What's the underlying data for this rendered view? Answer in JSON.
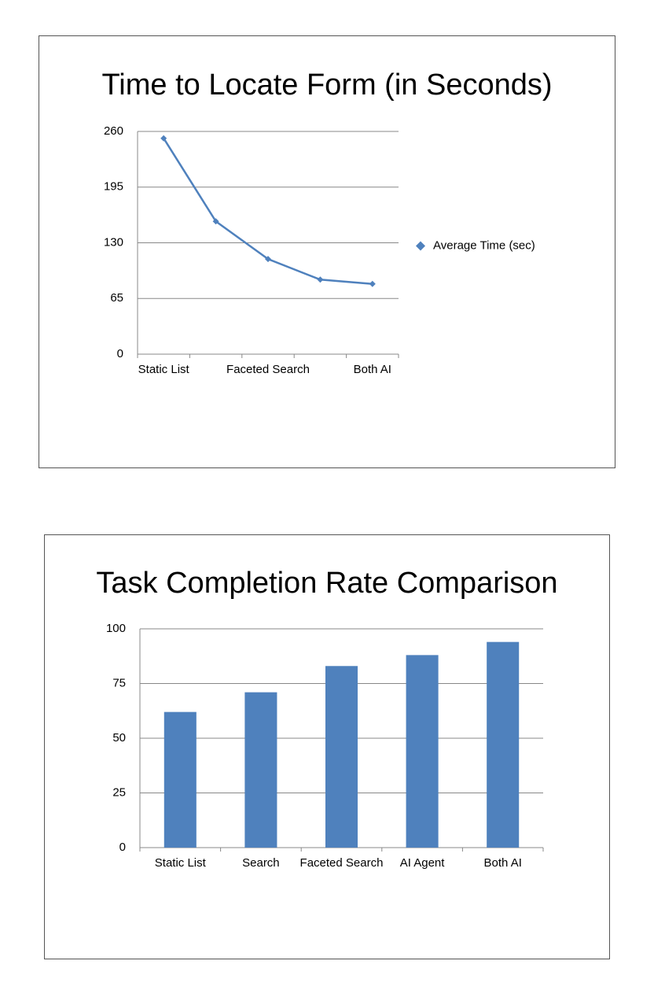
{
  "chart_data": [
    {
      "type": "line",
      "title": "Time to Locate Form (in Seconds)",
      "categories": [
        "Static List",
        null,
        "Faceted Search",
        null,
        "Both AI"
      ],
      "series": [
        {
          "name": "Average Time (sec)",
          "color": "#4f81bd",
          "values": [
            252,
            155,
            111,
            87,
            82
          ]
        }
      ],
      "ylim": [
        0,
        260
      ],
      "yticks": [
        0,
        65,
        130,
        195,
        260
      ],
      "grid": true,
      "legend": "right"
    },
    {
      "type": "bar",
      "title": "Task Completion Rate Comparison",
      "categories": [
        "Static List",
        "Search",
        "Faceted Search",
        "AI Agent",
        "Both AI"
      ],
      "values": [
        62,
        71,
        83,
        88,
        94
      ],
      "color": "#4f81bd",
      "ylim": [
        0,
        100
      ],
      "yticks": [
        0,
        25,
        50,
        75,
        100
      ],
      "grid": true
    }
  ]
}
